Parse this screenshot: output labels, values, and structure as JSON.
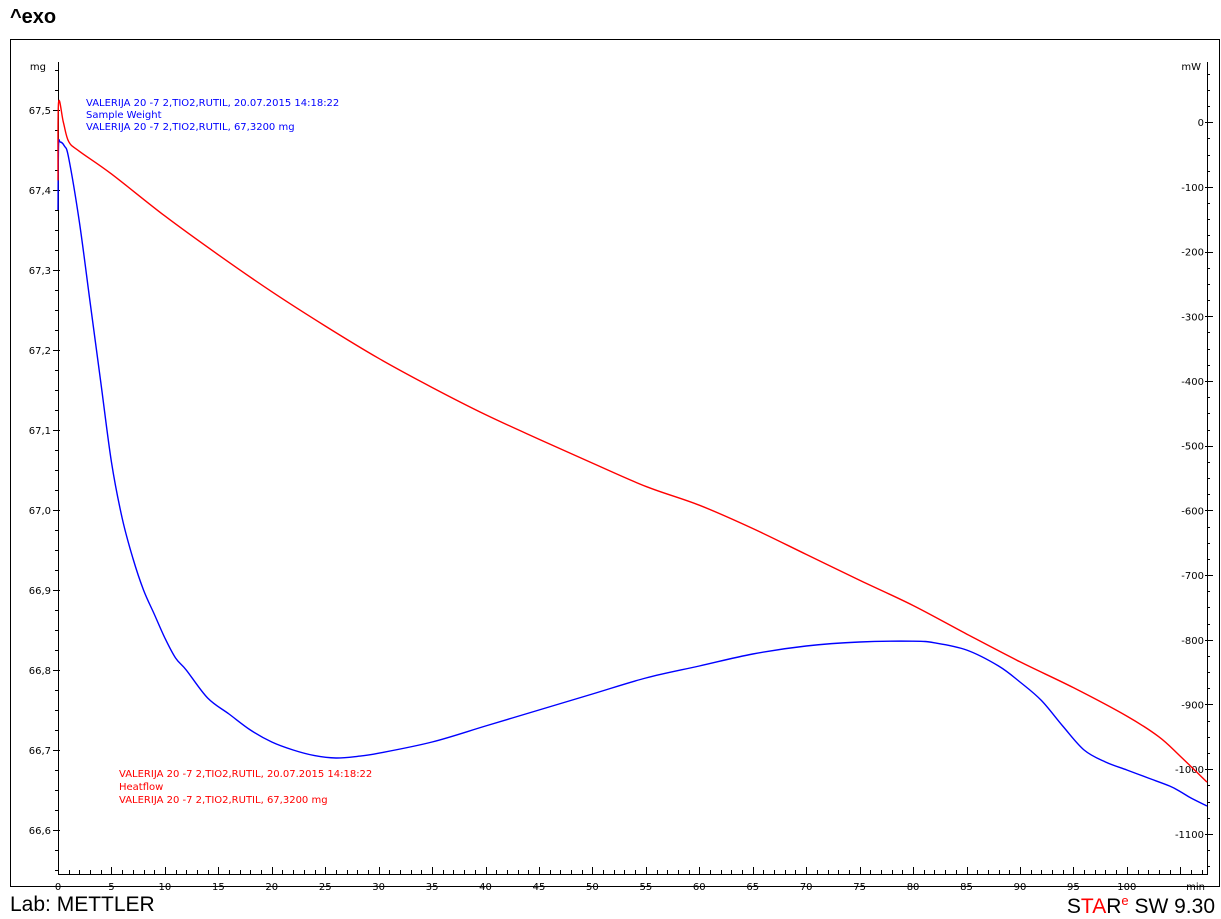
{
  "header": {
    "exo_label": "^exo"
  },
  "footer": {
    "lab_label": "Lab: METTLER",
    "software": {
      "s": "S",
      "t": "T",
      "a": "A",
      "r": "R",
      "e": "e",
      "version": " SW 9.30"
    }
  },
  "colors": {
    "weight": "#0000ff",
    "heatflow": "#ff0000",
    "axis": "#000000"
  },
  "annotations": {
    "weight": {
      "line1": "VALERIJA 20 -7 2,TIO2,RUTIL, 20.07.2015 14:18:22",
      "line2": "Sample Weight",
      "line3": "VALERIJA 20 -7 2,TIO2,RUTIL, 67,3200 mg"
    },
    "heatflow": {
      "line1": "VALERIJA 20 -7 2,TIO2,RUTIL, 20.07.2015 14:18:22",
      "line2": "Heatflow",
      "line3": "VALERIJA 20 -7 2,TIO2,RUTIL, 67,3200 mg"
    }
  },
  "chart_data": {
    "type": "line",
    "xlabel": "min",
    "ylabel_left": "mg",
    "ylabel_right": "mW",
    "xlim": [
      0,
      107.5
    ],
    "ylim_left": [
      66.545,
      67.56
    ],
    "ylim_right": [
      -1162,
      93
    ],
    "x_ticks": [
      0,
      5,
      10,
      15,
      20,
      25,
      30,
      35,
      40,
      45,
      50,
      55,
      60,
      65,
      70,
      75,
      80,
      85,
      90,
      95,
      100
    ],
    "x_tick_labels": [
      "0",
      "5",
      "10",
      "15",
      "20",
      "25",
      "30",
      "35",
      "40",
      "45",
      "50",
      "55",
      "60",
      "65",
      "70",
      "75",
      "80",
      "85",
      "90",
      "95",
      "100"
    ],
    "y_left_ticks": [
      66.6,
      66.7,
      66.8,
      66.9,
      67.0,
      67.1,
      67.2,
      67.3,
      67.4,
      67.5
    ],
    "y_left_tick_labels": [
      "66,6",
      "66,7",
      "66,8",
      "66,9",
      "67,0",
      "67,1",
      "67,2",
      "67,3",
      "67,4",
      "67,5"
    ],
    "y_right_ticks": [
      0,
      -100,
      -200,
      -300,
      -400,
      -500,
      -600,
      -700,
      -800,
      -900,
      -1000,
      -1100
    ],
    "y_right_tick_labels": [
      "0",
      "-100",
      "-200",
      "-300",
      "-400",
      "-500",
      "-600",
      "-700",
      "-800",
      "-900",
      "-1000",
      "-1100"
    ],
    "series": [
      {
        "name": "Sample Weight",
        "axis": "left",
        "color": "#0000ff",
        "x": [
          0,
          0.05,
          0.2,
          0.6,
          1,
          2,
          3,
          4,
          5,
          6,
          7,
          8,
          9,
          10,
          11,
          12,
          14,
          16,
          18,
          20,
          22,
          24,
          26,
          28,
          30,
          35,
          40,
          45,
          50,
          55,
          60,
          65,
          70,
          75,
          80,
          82,
          85,
          88,
          90,
          92,
          94,
          96,
          98,
          100,
          102,
          104,
          105,
          106,
          107.5
        ],
        "y": [
          67.375,
          67.455,
          67.46,
          67.455,
          67.44,
          67.36,
          67.26,
          67.16,
          67.06,
          66.99,
          66.94,
          66.9,
          66.87,
          66.84,
          66.815,
          66.8,
          66.765,
          66.745,
          66.725,
          66.71,
          66.7,
          66.693,
          66.69,
          66.692,
          66.696,
          66.71,
          66.73,
          66.75,
          66.77,
          66.79,
          66.805,
          66.82,
          66.83,
          66.835,
          66.836,
          66.834,
          66.825,
          66.805,
          66.785,
          66.762,
          66.73,
          66.7,
          66.685,
          66.675,
          66.665,
          66.655,
          66.648,
          66.64,
          66.63
        ]
      },
      {
        "name": "Heatflow",
        "axis": "right",
        "color": "#ff0000",
        "x": [
          0,
          0.05,
          0.5,
          1,
          2,
          5,
          10,
          15,
          20,
          25,
          30,
          35,
          40,
          45,
          50,
          55,
          60,
          65,
          70,
          75,
          80,
          85,
          90,
          95,
          100,
          103,
          105,
          107.5
        ],
        "y": [
          -90,
          30,
          0,
          -30,
          -45,
          -80,
          -145,
          -205,
          -262,
          -315,
          -365,
          -410,
          -452,
          -490,
          -527,
          -563,
          -592,
          -628,
          -668,
          -708,
          -747,
          -791,
          -834,
          -874,
          -918,
          -950,
          -980,
          -1020
        ]
      }
    ],
    "grid": false,
    "legend": "annotations"
  }
}
